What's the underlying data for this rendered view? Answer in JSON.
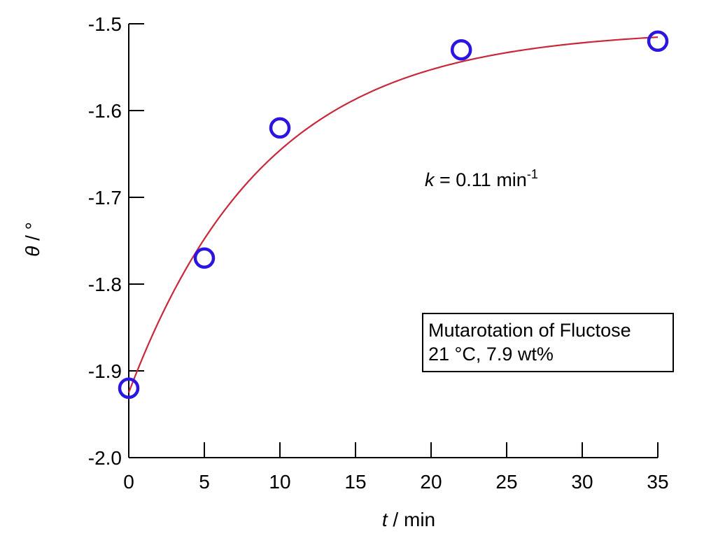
{
  "chart_data": {
    "type": "scatter",
    "xlabel": {
      "symbol": "t",
      "unit": " / min"
    },
    "ylabel": {
      "symbol": "θ",
      "unit": " / °"
    },
    "xlim": [
      0,
      35
    ],
    "ylim": [
      -2.0,
      -1.5
    ],
    "x_ticks": [
      0,
      5,
      10,
      15,
      20,
      25,
      30,
      35
    ],
    "x_tick_labels": [
      "0",
      "5",
      "10",
      "15",
      "20",
      "25",
      "30",
      "35"
    ],
    "y_ticks": [
      -2.0,
      -1.9,
      -1.8,
      -1.7,
      -1.6,
      -1.5
    ],
    "y_tick_labels": [
      "-2.0",
      "-1.9",
      "-1.8",
      "-1.7",
      "-1.6",
      "-1.5"
    ],
    "grid": false,
    "series": [
      {
        "kind": "points",
        "marker": "open-circle",
        "color": "#2a16e0",
        "points": [
          {
            "x": 0,
            "y": -1.92
          },
          {
            "x": 5,
            "y": -1.77
          },
          {
            "x": 10,
            "y": -1.62
          },
          {
            "x": 22,
            "y": -1.53
          },
          {
            "x": 35,
            "y": -1.52
          }
        ]
      },
      {
        "kind": "fit-line",
        "color": "#c8283a",
        "model": "exponential approach",
        "parameters": {
          "theta_inf": -1.5065,
          "theta_0": -1.925,
          "k": 0.11
        },
        "x_range": [
          0,
          35
        ]
      }
    ],
    "annotations": {
      "rate": {
        "symbol": "k",
        "text": " = 0.11 min",
        "superscript": "-1"
      },
      "legend_box": {
        "line1": "Mutarotation of Fluctose",
        "line2": "21 °C, 7.9 wt%"
      }
    }
  }
}
